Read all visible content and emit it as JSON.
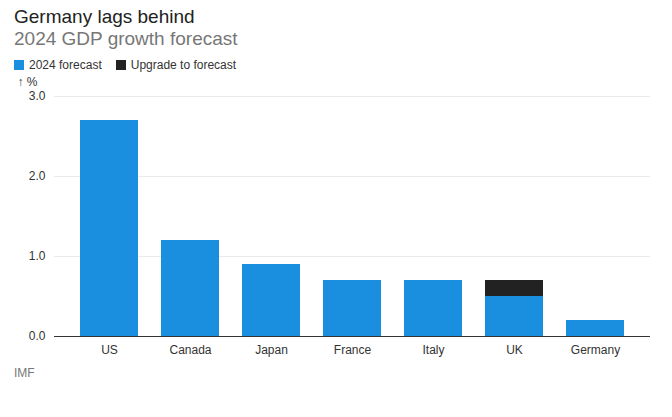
{
  "chart_data": {
    "type": "bar",
    "title": "Germany lags behind",
    "subtitle": "2024 GDP growth forecast",
    "caption": "IMF",
    "ylabel": "%",
    "categories": [
      "US",
      "Canada",
      "Japan",
      "France",
      "Italy",
      "UK",
      "Germany"
    ],
    "series": [
      {
        "name": "2024 forecast",
        "color": "#1a8fe0",
        "values": [
          2.7,
          1.2,
          0.9,
          0.7,
          0.7,
          0.5,
          0.2
        ]
      },
      {
        "name": "Upgrade to forecast",
        "color": "#222222",
        "values": [
          null,
          null,
          null,
          null,
          null,
          0.2,
          null
        ]
      }
    ],
    "stacked": true,
    "ylim": [
      0,
      3
    ],
    "yticks": [
      0,
      1,
      2,
      3
    ],
    "grid": true,
    "legend": "top-left"
  }
}
